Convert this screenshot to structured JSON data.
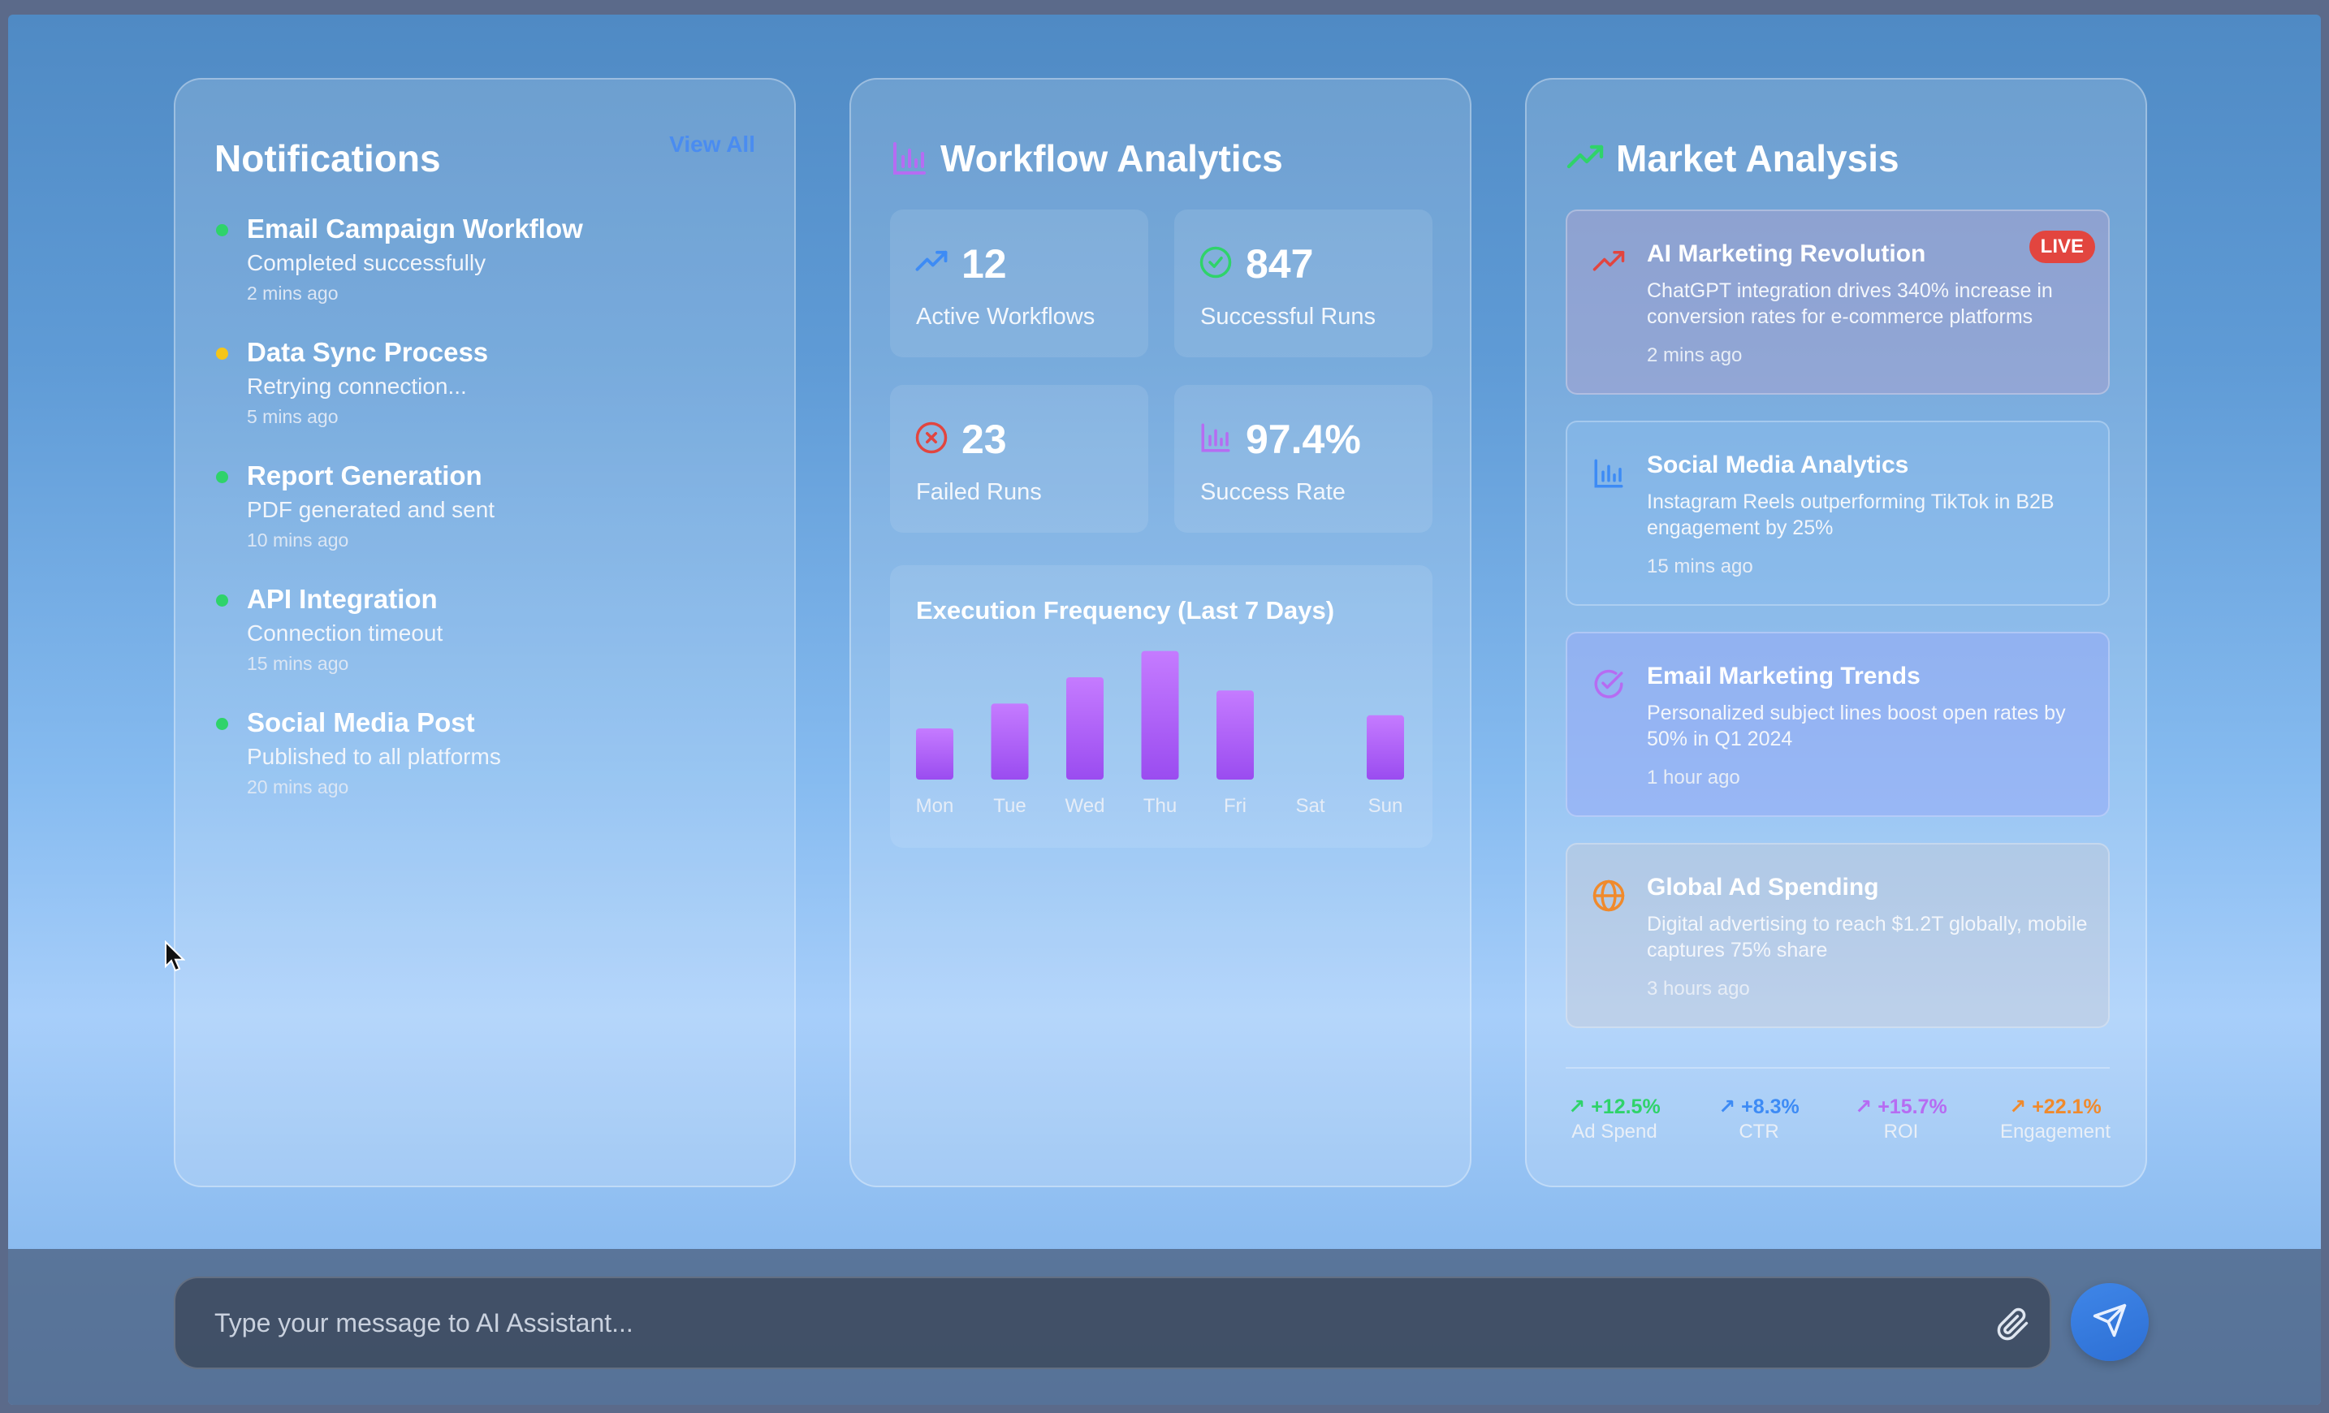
{
  "notifications": {
    "title": "Notifications",
    "view_all": "View All",
    "items": [
      {
        "title": "Email Campaign Workflow",
        "message": "Completed successfully",
        "time": "2 mins ago",
        "color": "#2fd36a"
      },
      {
        "title": "Data Sync Process",
        "message": "Retrying connection...",
        "time": "5 mins ago",
        "color": "#f5c518"
      },
      {
        "title": "Report Generation",
        "message": "PDF generated and sent",
        "time": "10 mins ago",
        "color": "#2fd36a"
      },
      {
        "title": "API Integration",
        "message": "Connection timeout",
        "time": "15 mins ago",
        "color": "#2fd36a"
      },
      {
        "title": "Social Media Post",
        "message": "Published to all platforms",
        "time": "20 mins ago",
        "color": "#2fd36a"
      }
    ]
  },
  "workflow": {
    "title": "Workflow Analytics",
    "title_icon": "bar-chart-icon",
    "stats": [
      {
        "value": "12",
        "label": "Active Workflows",
        "icon": "trending-up-icon",
        "color": "#3d8bf5"
      },
      {
        "value": "847",
        "label": "Successful Runs",
        "icon": "check-circle-icon",
        "color": "#2fd36a"
      },
      {
        "value": "23",
        "label": "Failed Runs",
        "icon": "x-circle-icon",
        "color": "#e2453f"
      },
      {
        "value": "97.4%",
        "label": "Success Rate",
        "icon": "bar-chart-icon",
        "color": "#b66cf2"
      }
    ],
    "chart_title": "Execution Frequency (Last 7 Days)"
  },
  "chart_data": {
    "type": "bar",
    "title": "Execution Frequency (Last 7 Days)",
    "categories": [
      "Mon",
      "Tue",
      "Wed",
      "Thu",
      "Fri",
      "Sat",
      "Sun"
    ],
    "values": [
      35,
      52,
      70,
      88,
      61,
      0,
      44
    ],
    "ylim": [
      0,
      100
    ],
    "xlabel": "",
    "ylabel": "",
    "grid": false,
    "bar_color_top": "#c57bff",
    "bar_color_bottom": "#9a4cf0"
  },
  "market": {
    "title": "Market Analysis",
    "title_icon": "trending-up-icon",
    "news": [
      {
        "title": "AI Marketing Revolution",
        "body": "ChatGPT integration drives 340% increase in conversion rates for e-commerce platforms",
        "time": "2 mins ago",
        "icon": "trending-up-icon",
        "color": "#e2453f",
        "badge": "LIVE"
      },
      {
        "title": "Social Media Analytics",
        "body": "Instagram Reels outperforming TikTok in B2B engagement by 25%",
        "time": "15 mins ago",
        "icon": "bar-chart-icon",
        "color": "#3d8bf5"
      },
      {
        "title": "Email Marketing Trends",
        "body": "Personalized subject lines boost open rates by 50% in Q1 2024",
        "time": "1 hour ago",
        "icon": "check-circle-icon",
        "color": "#b66cf2"
      },
      {
        "title": "Global Ad Spending",
        "body": "Digital advertising to reach $1.2T globally, mobile captures 75% share",
        "time": "3 hours ago",
        "icon": "globe-icon",
        "color": "#f08a2c"
      }
    ],
    "metrics": [
      {
        "value": "+12.5%",
        "label": "Ad Spend",
        "color": "#2fd36a"
      },
      {
        "value": "+8.3%",
        "label": "CTR",
        "color": "#3d8bf5"
      },
      {
        "value": "+15.7%",
        "label": "ROI",
        "color": "#b66cf2"
      },
      {
        "value": "+22.1%",
        "label": "Engagement",
        "color": "#f08a2c"
      }
    ]
  },
  "chat": {
    "placeholder": "Type your message to AI Assistant...",
    "attach_icon": "paperclip-icon",
    "send_icon": "send-icon"
  }
}
